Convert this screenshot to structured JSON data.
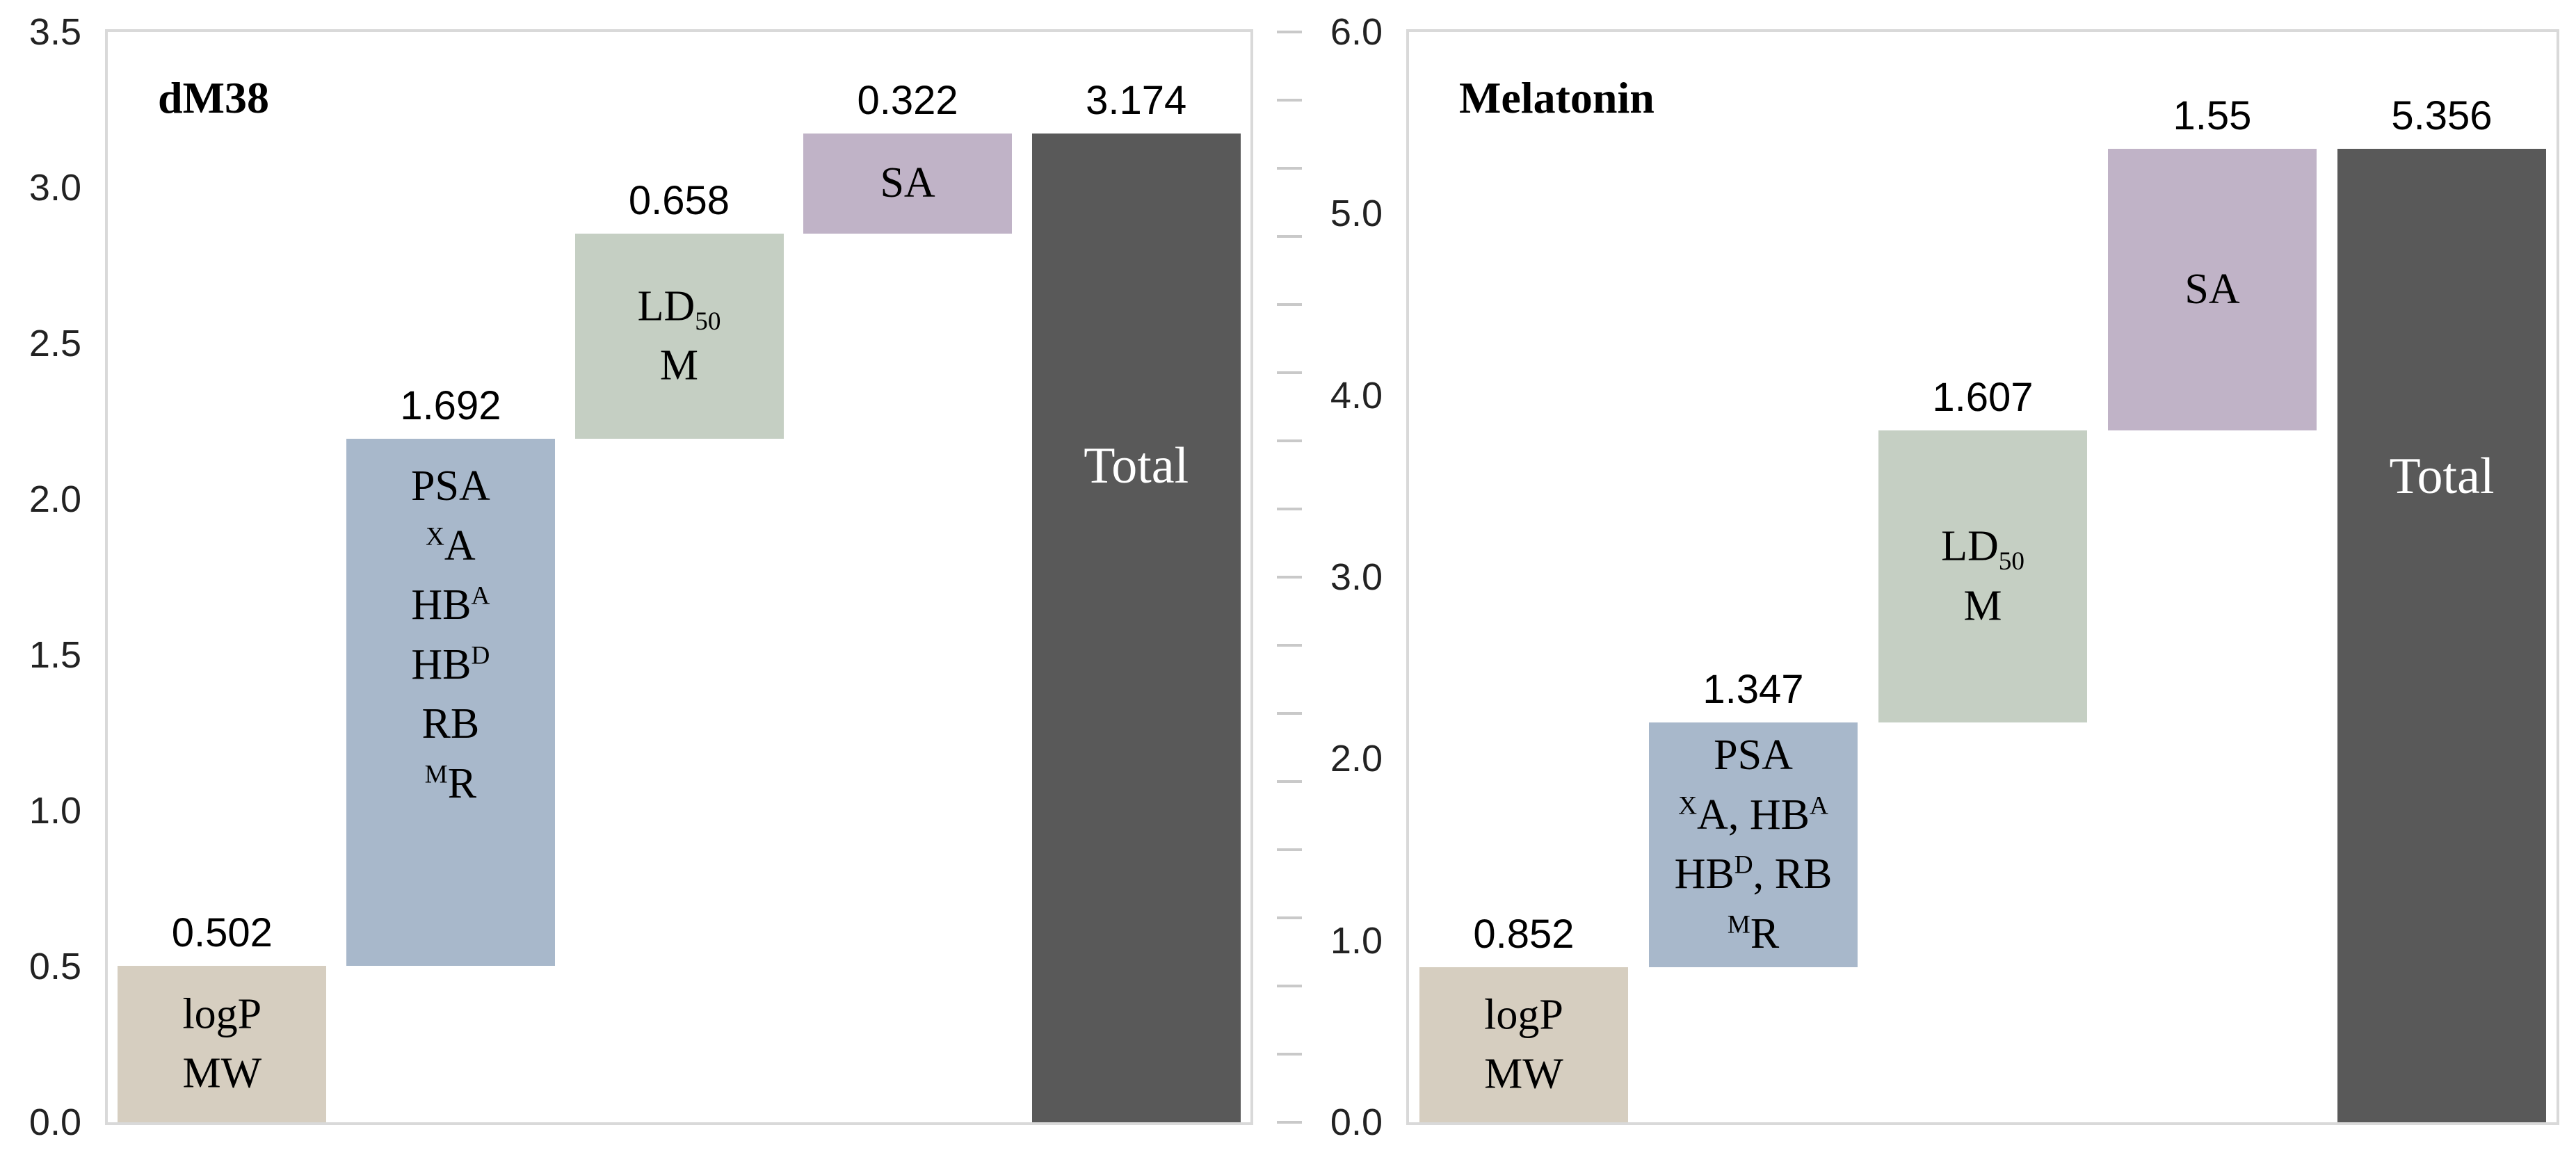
{
  "figure": {
    "background": "#ffffff",
    "plot_border_color": "#d9d9d9",
    "axis_text_color": "#222222",
    "value_text_color": "#000000",
    "minor_tick_color": "#c9c9c9"
  },
  "chart_data": [
    {
      "type": "waterfall",
      "title": "dM38",
      "ylabel": "",
      "xlabel": "",
      "ylim": [
        0.0,
        3.5
      ],
      "ytick_interval": 0.5,
      "ytick_labels": [
        "0.0",
        "0.5",
        "1.0",
        "1.5",
        "2.0",
        "2.5",
        "3.0",
        "3.5"
      ],
      "minor_tick_step": null,
      "grid": false,
      "legend": false,
      "categories": [
        "logP MW",
        "PSA XA HBA HBD RB MR",
        "LD50 M",
        "SA",
        "Total"
      ],
      "bars": [
        {
          "name": "bar-logp-mw",
          "category": "logP MW",
          "increment": 0.502,
          "start": 0.0,
          "end": 0.502,
          "is_total": false,
          "value_label": "0.502",
          "color": "#d6cec0",
          "text_color": "#000000",
          "font_px": 62,
          "v_align": "center",
          "lines": [
            [
              {
                "t": "logP"
              }
            ],
            [
              {
                "t": "MW"
              }
            ]
          ]
        },
        {
          "name": "bar-descriptors",
          "category": "PSA XA HBA HBD RB MR",
          "increment": 1.692,
          "start": 0.502,
          "end": 2.194,
          "is_total": false,
          "value_label": "1.692",
          "color": "#a8b8cb",
          "text_color": "#000000",
          "font_px": 62,
          "v_align": "top",
          "pad_top": 26,
          "lines": [
            [
              {
                "t": "PSA"
              }
            ],
            [
              {
                "sup": "X"
              },
              {
                "t": "A"
              }
            ],
            [
              {
                "t": "HB"
              },
              {
                "sup": "A"
              }
            ],
            [
              {
                "t": "HB"
              },
              {
                "sup": "D"
              }
            ],
            [
              {
                "t": "RB"
              }
            ],
            [
              {
                "sup": "M"
              },
              {
                "t": "R"
              }
            ]
          ]
        },
        {
          "name": "bar-ld50-m",
          "category": "LD50 M",
          "increment": 0.658,
          "start": 2.194,
          "end": 2.852,
          "is_total": false,
          "value_label": "0.658",
          "color": "#c5cfc3",
          "text_color": "#000000",
          "font_px": 62,
          "v_align": "center",
          "lines": [
            [
              {
                "t": "LD"
              },
              {
                "sub": "50"
              }
            ],
            [
              {
                "t": "M"
              }
            ]
          ]
        },
        {
          "name": "bar-sa",
          "category": "SA",
          "increment": 0.322,
          "start": 2.852,
          "end": 3.174,
          "is_total": false,
          "value_label": "0.322",
          "color": "#c0b3c7",
          "text_color": "#000000",
          "font_px": 62,
          "v_align": "center",
          "lines": [
            [
              {
                "t": "SA"
              }
            ]
          ]
        },
        {
          "name": "bar-total",
          "category": "Total",
          "increment": 3.174,
          "start": 0.0,
          "end": 3.174,
          "is_total": true,
          "value_label": "3.174",
          "color": "#595959",
          "text_color": "#ffffff",
          "font_px": 74,
          "v_align": "upper",
          "top_frac": 0.3,
          "lines": [
            [
              {
                "t": "Total"
              }
            ]
          ]
        }
      ]
    },
    {
      "type": "waterfall",
      "title": "Melatonin",
      "ylabel": "",
      "xlabel": "",
      "ylim": [
        0.0,
        6.0
      ],
      "ytick_interval": 1.0,
      "ytick_labels": [
        "0.0",
        "1.0",
        "2.0",
        "3.0",
        "4.0",
        "5.0",
        "6.0"
      ],
      "minor_tick_step": 0.375,
      "grid": false,
      "legend": false,
      "categories": [
        "logP MW",
        "PSA XA HBA HBD RB MR",
        "LD50 M",
        "SA",
        "Total"
      ],
      "bars": [
        {
          "name": "bar-logp-mw",
          "category": "logP MW",
          "increment": 0.852,
          "start": 0.0,
          "end": 0.852,
          "is_total": false,
          "value_label": "0.852",
          "color": "#d6cec0",
          "text_color": "#000000",
          "font_px": 62,
          "v_align": "center",
          "lines": [
            [
              {
                "t": "logP"
              }
            ],
            [
              {
                "t": "MW"
              }
            ]
          ]
        },
        {
          "name": "bar-descriptors",
          "category": "PSA XA HBA HBD RB MR",
          "increment": 1.347,
          "start": 0.852,
          "end": 2.199,
          "is_total": false,
          "value_label": "1.347",
          "color": "#a8b8cb",
          "text_color": "#000000",
          "font_px": 62,
          "v_align": "center",
          "lines": [
            [
              {
                "t": "PSA"
              }
            ],
            [
              {
                "sup": "X"
              },
              {
                "t": "A, HB"
              },
              {
                "sup": "A"
              }
            ],
            [
              {
                "t": "HB"
              },
              {
                "sup": "D"
              },
              {
                "t": ", RB"
              }
            ],
            [
              {
                "sup": "M"
              },
              {
                "t": "R"
              }
            ]
          ]
        },
        {
          "name": "bar-ld50-m",
          "category": "LD50 M",
          "increment": 1.607,
          "start": 2.199,
          "end": 3.806,
          "is_total": false,
          "value_label": "1.607",
          "color": "#c5cfc3",
          "text_color": "#000000",
          "font_px": 62,
          "v_align": "center",
          "lines": [
            [
              {
                "t": "LD"
              },
              {
                "sub": "50"
              }
            ],
            [
              {
                "t": "M"
              }
            ]
          ]
        },
        {
          "name": "bar-sa",
          "category": "SA",
          "increment": 1.55,
          "start": 3.806,
          "end": 5.356,
          "is_total": false,
          "value_label": "1.55",
          "color": "#c0b3c7",
          "text_color": "#000000",
          "font_px": 62,
          "v_align": "center",
          "lines": [
            [
              {
                "t": "SA"
              }
            ]
          ]
        },
        {
          "name": "bar-total",
          "category": "Total",
          "increment": 5.356,
          "start": 0.0,
          "end": 5.356,
          "is_total": true,
          "value_label": "5.356",
          "color": "#595959",
          "text_color": "#ffffff",
          "font_px": 74,
          "v_align": "upper",
          "top_frac": 0.3,
          "lines": [
            [
              {
                "t": "Total"
              }
            ]
          ]
        }
      ]
    }
  ]
}
